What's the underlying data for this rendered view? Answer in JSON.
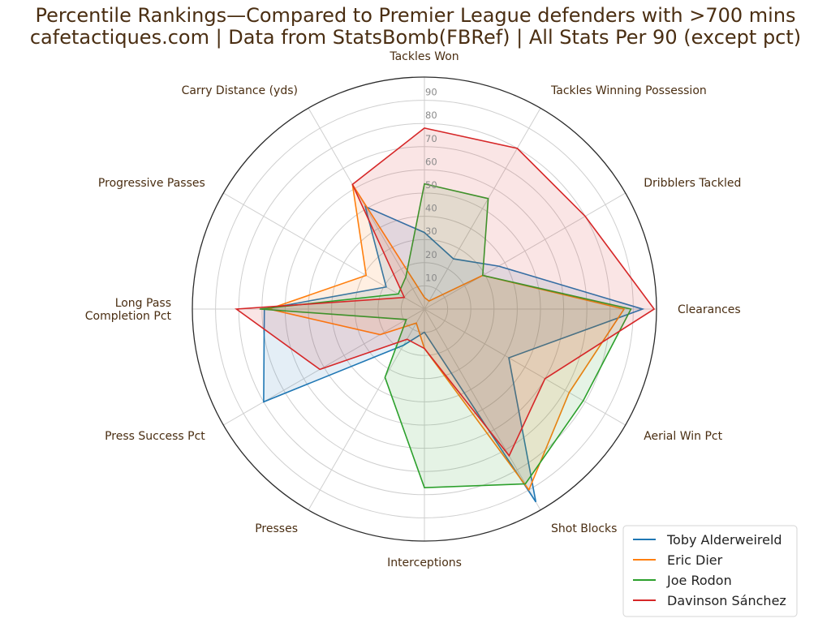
{
  "chart_data": {
    "type": "radar",
    "title": "Percentile Rankings—Compared to Premier League defenders with >700 mins",
    "subtitle": "cafetactiques.com | Data from StatsBomb(FBRef) | All Stats Per 90 (except pct)",
    "categories": [
      "Tackles Won",
      "Tackles Winning Possession",
      "Dribblers Tackled",
      "Clearances",
      "Aerial Win Pct",
      "Shot Blocks",
      "Interceptions",
      "Presses",
      "Press Success Pct",
      "Long Pass\nCompletion Pct",
      "Progressive Passes",
      "Carry Distance (yds)"
    ],
    "r_ticks": [
      10,
      20,
      30,
      40,
      50,
      60,
      70,
      80,
      90
    ],
    "rlim": [
      0,
      100
    ],
    "grid": true,
    "legend_position": "bottom-right",
    "series": [
      {
        "name": "Toby Alderweireld",
        "color": "#1f77b4",
        "fill_opacity": 0.12,
        "values": [
          33,
          25,
          37,
          94,
          42,
          96,
          10,
          18,
          80,
          69,
          19,
          51
        ]
      },
      {
        "name": "Eric Dier",
        "color": "#ff7f0e",
        "fill_opacity": 0.12,
        "values": [
          5,
          4,
          29,
          86,
          72,
          90,
          17,
          7,
          22,
          67,
          29,
          62
        ]
      },
      {
        "name": "Joe Rodon",
        "color": "#2ca02c",
        "fill_opacity": 0.12,
        "values": [
          54,
          55,
          29,
          89,
          79,
          87,
          77,
          34,
          9,
          71,
          13,
          16
        ]
      },
      {
        "name": "Davinson Sánchez",
        "color": "#d62728",
        "fill_opacity": 0.12,
        "values": [
          78,
          80,
          80,
          99,
          60,
          73,
          17,
          15,
          52,
          81,
          10,
          62
        ]
      }
    ]
  }
}
